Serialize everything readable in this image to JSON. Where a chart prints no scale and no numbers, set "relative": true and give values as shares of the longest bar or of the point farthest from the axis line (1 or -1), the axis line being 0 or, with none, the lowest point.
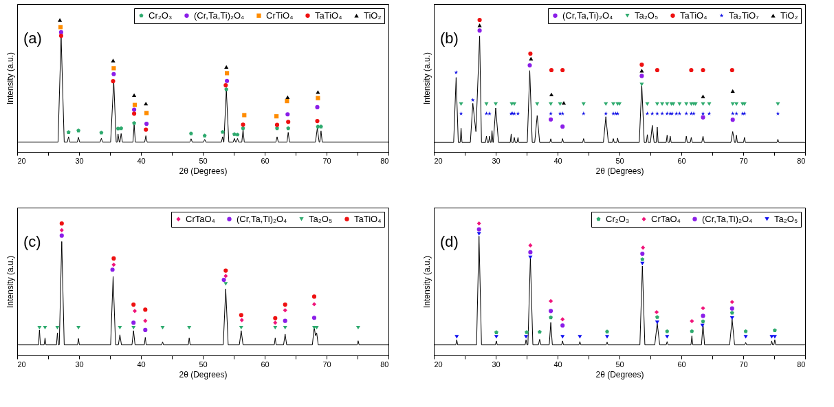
{
  "chart_data": [
    {
      "type": "line",
      "title": "(a)",
      "xlabel": "2θ (Degrees)",
      "ylabel": "Intensity (a.u.)",
      "xlim": [
        20,
        80
      ],
      "xticks": [
        20,
        {
          "value": 25,
          "label": null
        },
        30,
        {
          "value": 35,
          "label": null
        },
        40,
        {
          "value": 45,
          "label": null
        },
        50,
        {
          "value": 55,
          "label": null
        },
        60,
        {
          "value": 65,
          "label": null
        },
        70,
        {
          "value": 75,
          "label": null
        },
        80
      ],
      "relative": true,
      "legend": "top right",
      "series": [
        {
          "type": "line",
          "color": "#000000",
          "x": [
            20,
            26.6,
            27.1,
            27.6,
            28.1,
            28.3,
            28.5,
            29.7,
            29.9,
            30.1,
            33.4,
            33.6,
            33.8,
            35.1,
            35.6,
            36.0,
            36.15,
            36.3,
            36.5,
            36.6,
            36.8,
            37.0,
            38.7,
            38.9,
            39.1,
            40.6,
            40.8,
            41.0,
            47.9,
            48.1,
            48.3,
            50.1,
            50.3,
            50.5,
            53.0,
            53.2,
            53.35,
            53.4,
            53.8,
            54.2,
            54.9,
            55.1,
            55.3,
            55.4,
            55.6,
            55.8,
            56.3,
            56.5,
            56.7,
            61.8,
            62.0,
            62.2,
            63.6,
            63.8,
            64.0,
            68.2,
            68.5,
            68.8,
            68.9,
            69.1,
            69.3,
            80
          ],
          "values": [
            0.074,
            0.074,
            0.877,
            0.074,
            0.074,
            0.115,
            0.074,
            0.074,
            0.111,
            0.074,
            0.074,
            0.103,
            0.074,
            0.074,
            0.541,
            0.074,
            0.074,
            0.136,
            0.074,
            0.074,
            0.139,
            0.074,
            0.074,
            0.205,
            0.074,
            0.074,
            0.123,
            0.074,
            0.074,
            0.1,
            0.074,
            0.074,
            0.095,
            0.074,
            0.074,
            0.115,
            0.074,
            0.074,
            0.467,
            0.074,
            0.074,
            0.102,
            0.074,
            0.074,
            0.102,
            0.074,
            0.074,
            0.169,
            0.074,
            0.074,
            0.115,
            0.074,
            0.074,
            0.148,
            0.074,
            0.074,
            0.18,
            0.074,
            0.074,
            0.159,
            0.074,
            0.074
          ]
        },
        {
          "name": "Cr₂O₃",
          "type": "scatter",
          "color": "#2eaa6e",
          "x": [
            28.3,
            29.9,
            33.6,
            36.3,
            36.8,
            38.9,
            48.1,
            50.3,
            53.2,
            53.8,
            55.1,
            55.6,
            56.5,
            62.0,
            63.8,
            68.6,
            69.1
          ],
          "values": [
            0.149,
            0.162,
            0.146,
            0.177,
            0.179,
            0.218,
            0.139,
            0.123,
            0.151,
            0.474,
            0.134,
            0.131,
            0.179,
            0.179,
            0.179,
            0.192,
            0.192
          ]
        },
        {
          "name": "(Cr,Ta,Ti)₂O₄",
          "type": "scatter",
          "marker": "circle",
          "color": "#8b1ee8",
          "x": [
            27.1,
            35.6,
            38.9,
            40.9,
            53.9,
            63.7,
            68.5
          ],
          "values": [
            0.907,
            0.59,
            0.32,
            0.213,
            0.538,
            0.285,
            0.339
          ]
        },
        {
          "name": "CrTiO₄",
          "type": "scatter",
          "marker": "square",
          "color": "#ff8c00",
          "x": [
            27.0,
            35.6,
            39.0,
            40.9,
            53.9,
            56.7,
            61.9,
            63.6,
            68.6
          ],
          "values": [
            0.946,
            0.634,
            0.356,
            0.295,
            0.597,
            0.279,
            0.27,
            0.385,
            0.408
          ]
        },
        {
          "name": "TaTiO₄",
          "type": "scatter",
          "marker": "circle",
          "color": "#ee1111",
          "x": [
            27.1,
            35.5,
            38.9,
            40.8,
            53.7,
            56.5,
            62.0,
            63.8,
            68.5
          ],
          "values": [
            0.88,
            0.536,
            0.29,
            0.169,
            0.505,
            0.207,
            0.205,
            0.228,
            0.234
          ]
        },
        {
          "name": "TiO₂",
          "type": "scatter",
          "marker": "triangle",
          "color": "#000000",
          "x": [
            26.9,
            35.5,
            38.9,
            40.8,
            53.8,
            63.7,
            68.6
          ],
          "values": [
            1.0,
            0.693,
            0.43,
            0.367,
            0.644,
            0.415,
            0.454
          ]
        }
      ]
    },
    {
      "type": "line",
      "title": "(b)",
      "xlabel": "2θ (Degrees)",
      "ylabel": "Intensity (a.u.)",
      "xlim": [
        20,
        80
      ],
      "xticks": [
        20,
        {
          "value": 25,
          "label": null
        },
        30,
        {
          "value": 35,
          "label": null
        },
        40,
        {
          "value": 45,
          "label": null
        },
        50,
        {
          "value": 55,
          "label": null
        },
        60,
        {
          "value": 65,
          "label": null
        },
        70,
        {
          "value": 75,
          "label": null
        },
        80
      ],
      "relative": true,
      "legend": "top right",
      "series": [
        {
          "type": "line",
          "color": "#000000",
          "x": [
            20,
            23.2,
            23.6,
            23.95,
            24.25,
            24.4,
            24.55,
            25.9,
            26.3,
            26.8,
            27.4,
            27.7,
            28.35,
            28.5,
            28.65,
            28.85,
            29.0,
            29.15,
            29.25,
            29.4,
            29.55,
            29.6,
            30.0,
            30.45,
            32.35,
            32.5,
            32.6,
            32.85,
            33.0,
            33.15,
            33.45,
            33.6,
            33.75,
            35.1,
            35.5,
            35.9,
            36.3,
            36.7,
            37.1,
            38.75,
            38.9,
            39.05,
            40.65,
            40.8,
            40.95,
            44.05,
            44.2,
            44.35,
            47.4,
            47.8,
            48.2,
            48.85,
            49.0,
            49.15,
            49.55,
            49.7,
            49.85,
            53.2,
            53.6,
            54.0,
            54.35,
            54.5,
            54.65,
            55.0,
            55.3,
            55.6,
            55.95,
            56.1,
            56.25,
            57.55,
            57.7,
            57.85,
            58.05,
            58.2,
            58.35,
            60.65,
            60.8,
            60.95,
            61.45,
            61.6,
            61.75,
            63.3,
            63.5,
            63.7,
            68.0,
            68.3,
            68.6,
            68.75,
            68.9,
            69.05,
            70.05,
            70.2,
            70.35,
            75.45,
            75.6,
            75.75,
            80
          ],
          "values": [
            0.072,
            0.072,
            0.564,
            0.072,
            0.072,
            0.18,
            0.072,
            0.072,
            0.368,
            0.154,
            0.878,
            0.072,
            0.072,
            0.119,
            0.072,
            0.072,
            0.119,
            0.072,
            0.072,
            0.162,
            0.072,
            0.072,
            0.333,
            0.072,
            0.072,
            0.136,
            0.072,
            0.072,
            0.11,
            0.072,
            0.072,
            0.11,
            0.072,
            0.072,
            0.616,
            0.072,
            0.072,
            0.276,
            0.072,
            0.072,
            0.1,
            0.072,
            0.072,
            0.101,
            0.072,
            0.072,
            0.101,
            0.072,
            0.072,
            0.267,
            0.072,
            0.072,
            0.101,
            0.072,
            0.072,
            0.105,
            0.072,
            0.072,
            0.511,
            0.072,
            0.072,
            0.131,
            0.072,
            0.072,
            0.201,
            0.072,
            0.072,
            0.188,
            0.072,
            0.072,
            0.127,
            0.072,
            0.072,
            0.119,
            0.072,
            0.072,
            0.119,
            0.072,
            0.072,
            0.11,
            0.072,
            0.072,
            0.119,
            0.072,
            0.072,
            0.154,
            0.072,
            0.072,
            0.127,
            0.072,
            0.072,
            0.11,
            0.072,
            0.072,
            0.096,
            0.072,
            0.072
          ]
        },
        {
          "name": "(Cr,Ta,Ti)₂O₄",
          "type": "scatter",
          "marker": "circle",
          "color": "#8b1ee8",
          "x": [
            27.4,
            35.5,
            38.9,
            40.8,
            53.6,
            63.5,
            68.3
          ],
          "values": [
            0.92,
            0.656,
            0.246,
            0.192,
            0.576,
            0.262,
            0.244
          ]
        },
        {
          "name": "Ta₂O₅",
          "type": "scatter",
          "marker": "triangle-down",
          "color": "#2eaa6e",
          "x": [
            24.4,
            28.5,
            30.0,
            32.6,
            33.0,
            36.7,
            38.9,
            40.4,
            44.2,
            47.8,
            49.0,
            49.7,
            50.0,
            53.6,
            54.5,
            56.1,
            56.9,
            57.7,
            58.4,
            58.7,
            59.7,
            60.8,
            61.6,
            62.0,
            62.3,
            63.5,
            64.5,
            68.3,
            68.9,
            69.9,
            70.2,
            75.6
          ],
          "values": [
            0.363,
            0.363,
            0.363,
            0.363,
            0.363,
            0.363,
            0.363,
            0.363,
            0.363,
            0.363,
            0.363,
            0.363,
            0.363,
            0.511,
            0.363,
            0.363,
            0.363,
            0.363,
            0.363,
            0.363,
            0.363,
            0.363,
            0.363,
            0.363,
            0.363,
            0.363,
            0.363,
            0.363,
            0.363,
            0.363,
            0.363,
            0.363
          ]
        },
        {
          "name": "TaTiO₄",
          "type": "scatter",
          "marker": "circle",
          "color": "#ee1111",
          "x": [
            27.4,
            35.6,
            39.0,
            40.8,
            53.6,
            56.1,
            61.6,
            63.5,
            68.2
          ],
          "values": [
            1.0,
            0.745,
            0.62,
            0.62,
            0.661,
            0.62,
            0.62,
            0.62,
            0.62
          ]
        },
        {
          "name": "Ta₂TiO₇",
          "type": "scatter",
          "marker": "star",
          "color": "#1515e6",
          "x": [
            23.6,
            24.4,
            26.3,
            28.5,
            29.0,
            32.5,
            32.7,
            33.0,
            33.6,
            38.9,
            40.4,
            40.8,
            44.2,
            47.8,
            49.0,
            49.4,
            49.7,
            54.5,
            55.3,
            56.1,
            56.9,
            57.7,
            58.2,
            58.5,
            59.2,
            59.7,
            60.8,
            61.6,
            62.0,
            63.5,
            64.5,
            68.3,
            68.9,
            69.9,
            70.2,
            75.6
          ],
          "values": [
            0.602,
            0.291,
            0.393,
            0.291,
            0.291,
            0.291,
            0.291,
            0.291,
            0.291,
            0.291,
            0.291,
            0.291,
            0.291,
            0.291,
            0.291,
            0.291,
            0.291,
            0.291,
            0.291,
            0.291,
            0.291,
            0.291,
            0.291,
            0.291,
            0.291,
            0.291,
            0.291,
            0.291,
            0.291,
            0.291,
            0.291,
            0.291,
            0.291,
            0.291,
            0.291,
            0.291
          ]
        },
        {
          "name": "TiO₂",
          "type": "scatter",
          "marker": "triangle",
          "color": "#000000",
          "x": [
            27.4,
            35.7,
            39.0,
            41.0,
            53.6,
            63.5,
            68.3
          ],
          "values": [
            0.96,
            0.707,
            0.436,
            0.372,
            0.616,
            0.421,
            0.462
          ]
        }
      ]
    },
    {
      "type": "line",
      "title": "(c)",
      "xlabel": "2θ (Degrees)",
      "ylabel": "Intensity (a.u.)",
      "xlim": [
        20,
        80
      ],
      "xticks": [
        20,
        {
          "value": 25,
          "label": null
        },
        30,
        {
          "value": 35,
          "label": null
        },
        40,
        {
          "value": 45,
          "label": null
        },
        50,
        {
          "value": 55,
          "label": null
        },
        60,
        {
          "value": 65,
          "label": null
        },
        70,
        {
          "value": 75,
          "label": null
        },
        80
      ],
      "relative": true,
      "legend": "top right",
      "series": [
        {
          "type": "line",
          "color": "#000000",
          "x": [
            20,
            23.45,
            23.6,
            23.75,
            24.35,
            24.5,
            24.65,
            26.35,
            26.5,
            26.65,
            26.8,
            27.2,
            27.6,
            29.75,
            29.9,
            30.05,
            35.1,
            35.5,
            35.9,
            36.35,
            36.6,
            36.85,
            38.55,
            38.8,
            39.05,
            40.55,
            40.7,
            40.85,
            43.35,
            43.5,
            43.65,
            47.65,
            47.8,
            47.95,
            53.3,
            53.7,
            54.1,
            55.9,
            56.2,
            56.5,
            61.55,
            61.7,
            61.85,
            63.05,
            63.3,
            63.55,
            67.7,
            68.0,
            68.2,
            68.4,
            68.65,
            74.95,
            75.1,
            75.25,
            80
          ],
          "values": [
            0.08,
            0.08,
            0.193,
            0.08,
            0.08,
            0.132,
            0.08,
            0.08,
            0.171,
            0.08,
            0.08,
            0.863,
            0.08,
            0.08,
            0.128,
            0.08,
            0.08,
            0.598,
            0.08,
            0.08,
            0.157,
            0.08,
            0.08,
            0.188,
            0.08,
            0.08,
            0.137,
            0.08,
            0.08,
            0.103,
            0.08,
            0.08,
            0.132,
            0.08,
            0.08,
            0.504,
            0.08,
            0.08,
            0.188,
            0.08,
            0.08,
            0.132,
            0.08,
            0.08,
            0.162,
            0.08,
            0.08,
            0.214,
            0.15,
            0.171,
            0.08,
            0.08,
            0.111,
            0.08,
            0.08
          ]
        },
        {
          "name": "CrTaO₄",
          "type": "scatter",
          "marker": "diamond",
          "color": "#f0147a",
          "x": [
            27.2,
            35.6,
            39.0,
            40.7,
            53.7,
            56.3,
            61.7,
            63.3,
            68.0
          ],
          "values": [
            0.949,
            0.687,
            0.337,
            0.262,
            0.602,
            0.268,
            0.248,
            0.342,
            0.388
          ]
        },
        {
          "name": "(Cr,Ta,Ti)₂O₄",
          "type": "scatter",
          "marker": "circle",
          "color": "#8b1ee8",
          "x": [
            27.2,
            35.4,
            38.8,
            40.7,
            53.4,
            63.3,
            68.0
          ],
          "values": [
            0.908,
            0.65,
            0.248,
            0.193,
            0.573,
            0.262,
            0.285
          ]
        },
        {
          "name": "Ta₂O₅",
          "type": "scatter",
          "marker": "triangle-down",
          "color": "#2eaa6e",
          "x": [
            23.6,
            24.5,
            26.5,
            29.9,
            36.6,
            38.8,
            43.5,
            47.8,
            53.7,
            56.2,
            61.7,
            63.3,
            68.0,
            68.4,
            75.1
          ],
          "values": [
            0.21,
            0.21,
            0.21,
            0.21,
            0.21,
            0.21,
            0.21,
            0.21,
            0.542,
            0.21,
            0.21,
            0.21,
            0.21,
            0.21,
            0.21
          ]
        },
        {
          "name": "TaTiO₄",
          "type": "scatter",
          "marker": "circle",
          "color": "#ee1111",
          "x": [
            27.2,
            35.6,
            38.8,
            40.7,
            53.7,
            56.2,
            61.7,
            63.3,
            68.0
          ],
          "values": [
            1.0,
            0.735,
            0.385,
            0.347,
            0.643,
            0.306,
            0.282,
            0.385,
            0.446
          ]
        }
      ]
    },
    {
      "type": "line",
      "title": "(d)",
      "xlabel": "2θ (Degrees)",
      "ylabel": "Intensity (a.u.)",
      "xlim": [
        20,
        80
      ],
      "xticks": [
        20,
        {
          "value": 25,
          "label": null
        },
        30,
        {
          "value": 35,
          "label": null
        },
        40,
        {
          "value": 45,
          "label": null
        },
        50,
        {
          "value": 55,
          "label": null
        },
        60,
        {
          "value": 65,
          "label": null
        },
        70,
        {
          "value": 75,
          "label": null
        },
        80
      ],
      "relative": true,
      "legend": "top right",
      "series": [
        {
          "type": "line",
          "color": "#000000",
          "x": [
            20,
            23.55,
            23.7,
            23.85,
            26.9,
            27.3,
            27.7,
            29.95,
            30.1,
            30.25,
            34.75,
            34.9,
            35.05,
            35.2,
            35.6,
            36.0,
            36.9,
            37.1,
            37.3,
            38.65,
            38.9,
            39.15,
            40.65,
            40.8,
            40.95,
            43.45,
            43.6,
            43.75,
            47.85,
            48.0,
            48.15,
            53.3,
            53.7,
            54.1,
            55.7,
            56.1,
            56.5,
            57.55,
            57.7,
            57.85,
            61.55,
            61.7,
            61.85,
            63.25,
            63.5,
            63.75,
            67.8,
            68.2,
            68.6,
            70.25,
            70.4,
            70.55,
            74.45,
            74.6,
            74.75,
            74.95,
            75.1,
            75.25,
            80
          ],
          "values": [
            0.08,
            0.08,
            0.119,
            0.08,
            0.08,
            0.904,
            0.08,
            0.08,
            0.11,
            0.08,
            0.08,
            0.119,
            0.08,
            0.08,
            0.738,
            0.08,
            0.08,
            0.122,
            0.08,
            0.08,
            0.25,
            0.08,
            0.08,
            0.11,
            0.08,
            0.08,
            0.105,
            0.08,
            0.08,
            0.101,
            0.08,
            0.08,
            0.677,
            0.08,
            0.08,
            0.244,
            0.08,
            0.08,
            0.105,
            0.08,
            0.08,
            0.148,
            0.08,
            0.08,
            0.241,
            0.08,
            0.08,
            0.276,
            0.08,
            0.08,
            0.098,
            0.08,
            0.08,
            0.11,
            0.08,
            0.08,
            0.119,
            0.08,
            0.08
          ]
        },
        {
          "name": "Cr₂O₃",
          "type": "scatter",
          "color": "#2eaa6e",
          "x": [
            30.1,
            35.0,
            37.1,
            38.9,
            48.0,
            53.7,
            56.1,
            57.7,
            61.7,
            63.5,
            68.2,
            70.4,
            75.1
          ],
          "values": [
            0.175,
            0.176,
            0.178,
            0.288,
            0.18,
            0.728,
            0.29,
            0.182,
            0.183,
            0.258,
            0.323,
            0.182,
            0.19
          ]
        },
        {
          "name": "CrTaO₄",
          "type": "scatter",
          "marker": "diamond",
          "color": "#f0147a",
          "x": [
            27.3,
            35.6,
            38.9,
            40.8,
            53.8,
            56.0,
            61.7,
            63.5,
            68.2
          ],
          "values": [
            1.0,
            0.834,
            0.412,
            0.274,
            0.817,
            0.328,
            0.26,
            0.358,
            0.405
          ]
        },
        {
          "name": "(Cr,Ta,Ti)₂O₄",
          "type": "scatter",
          "marker": "circle",
          "color": "#8b1ee8",
          "x": [
            27.3,
            35.6,
            38.9,
            40.8,
            53.7,
            63.5,
            68.2
          ],
          "values": [
            0.956,
            0.782,
            0.337,
            0.227,
            0.771,
            0.3,
            0.356
          ]
        },
        {
          "name": "Ta₂O₅",
          "type": "scatter",
          "marker": "triangle-down",
          "color": "#1010f0",
          "x": [
            23.7,
            27.3,
            30.1,
            34.9,
            35.6,
            40.8,
            43.6,
            48.0,
            53.7,
            56.1,
            57.7,
            63.4,
            68.2,
            70.4,
            74.6,
            75.1
          ],
          "values": [
            0.141,
            0.921,
            0.141,
            0.141,
            0.743,
            0.141,
            0.141,
            0.141,
            0.696,
            0.251,
            0.141,
            0.227,
            0.283,
            0.141,
            0.141,
            0.141
          ]
        }
      ]
    }
  ]
}
